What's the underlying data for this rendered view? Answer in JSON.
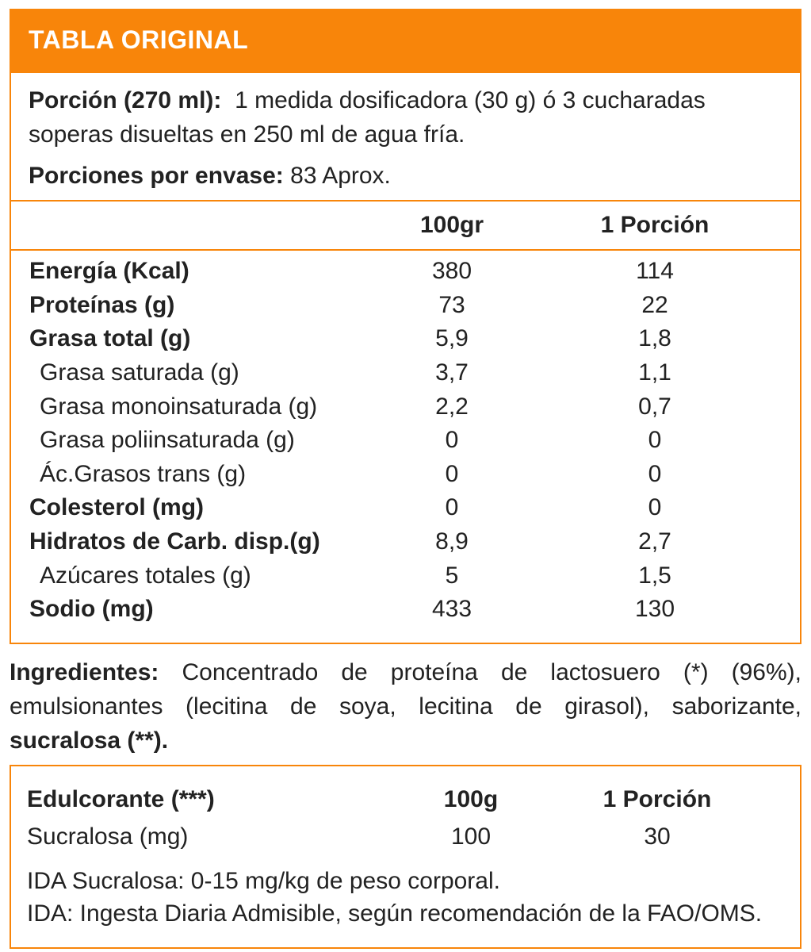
{
  "colors": {
    "orange": "#F8850A",
    "text": "#222222",
    "title_text": "#FFFFFF"
  },
  "header": {
    "title": "TABLA ORIGINAL"
  },
  "serving": {
    "porcion_label": "Porción (270 ml):",
    "porcion_text": "1 medida dosificadora (30 g) ó 3 cucharadas soperas disueltas en 250 ml de agua fría.",
    "envase_label": "Porciones por envase:",
    "envase_value": "83 Aprox."
  },
  "nutrition": {
    "col_100": "100gr",
    "col_portion": "1 Porción",
    "rows": [
      {
        "name": "Energía (Kcal)",
        "per100": "380",
        "portion": "114"
      },
      {
        "name": "Proteínas (g)",
        "per100": "73",
        "portion": "22"
      },
      {
        "name": "Grasa total (g)",
        "per100": "5,9",
        "portion": "1,8"
      },
      {
        "name": "Grasa saturada (g)",
        "per100": "3,7",
        "portion": "1,1"
      },
      {
        "name": "Grasa monoinsaturada (g)",
        "per100": "2,2",
        "portion": "0,7"
      },
      {
        "name": "Grasa poliinsaturada (g)",
        "per100": "0",
        "portion": "0"
      },
      {
        "name": "Ác.Grasos trans (g)",
        "per100": "0",
        "portion": "0"
      },
      {
        "name": "Colesterol (mg)",
        "per100": "0",
        "portion": "0"
      },
      {
        "name": "Hidratos de Carb. disp.(g)",
        "per100": "8,9",
        "portion": "2,7"
      },
      {
        "name": "Azúcares totales (g)",
        "per100": "5",
        "portion": "1,5"
      },
      {
        "name": "Sodio (mg)",
        "per100": "433",
        "portion": "130"
      }
    ]
  },
  "ingredients": {
    "label": "Ingredientes:",
    "text": "Concentrado de proteína de lactosuero (*) (96%), emulsionantes (lecitina de soya, lecitina de girasol), saborizante,",
    "bold_tail": "sucralosa (**)."
  },
  "sweetener": {
    "title": "Edulcorante (***)",
    "col_100": "100g",
    "col_portion": "1 Porción",
    "row": {
      "name": "Sucralosa (mg)",
      "per100": "100",
      "portion": "30"
    },
    "note1": "IDA Sucralosa: 0-15 mg/kg de peso corporal.",
    "note2": "IDA: Ingesta Diaria Admisible, según recomendación de la FAO/OMS."
  }
}
